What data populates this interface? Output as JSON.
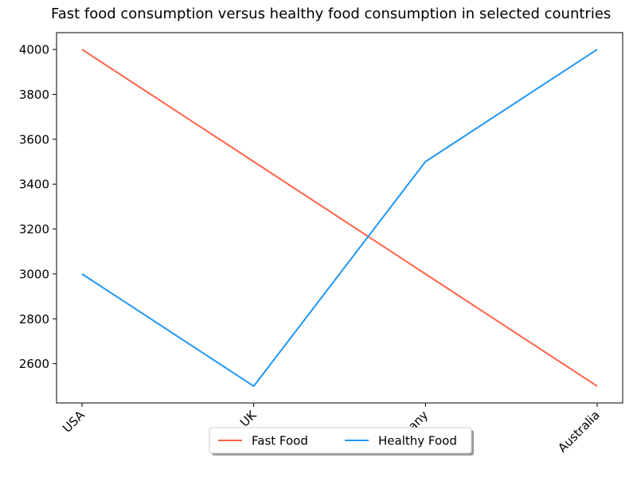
{
  "chart_data": {
    "type": "line",
    "title": "Fast food consumption versus healthy food consumption in selected countries",
    "xlabel": "",
    "ylabel": "",
    "categories": [
      "USA",
      "UK",
      "Germany",
      "Australia"
    ],
    "series": [
      {
        "name": "Fast Food",
        "values": [
          4000,
          3500,
          3000,
          2500
        ],
        "color": "#ff6347"
      },
      {
        "name": "Healthy Food",
        "values": [
          3000,
          2500,
          3500,
          4000
        ],
        "color": "#2196f3"
      }
    ],
    "ylim": [
      2425,
      4075
    ],
    "yticks": [
      2600,
      2800,
      3000,
      3200,
      3400,
      3600,
      3800,
      4000
    ],
    "grid": false,
    "legend_position": "bottom-center"
  }
}
